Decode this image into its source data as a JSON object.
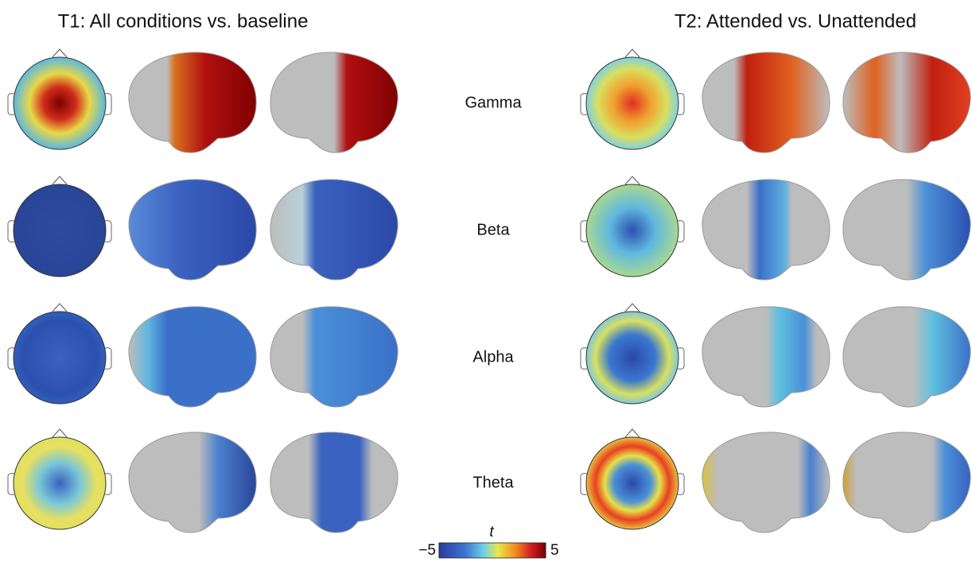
{
  "panels": {
    "left_title": "T1: All conditions vs. baseline",
    "right_title": "T2: Attended vs. Unattended"
  },
  "bands": [
    "Gamma",
    "Beta",
    "Alpha",
    "Theta"
  ],
  "colorbar": {
    "label": "t",
    "lim": [
      -5,
      5
    ],
    "ticks": [
      {
        "value": -5,
        "label": "−5"
      },
      5
    ]
  }
}
